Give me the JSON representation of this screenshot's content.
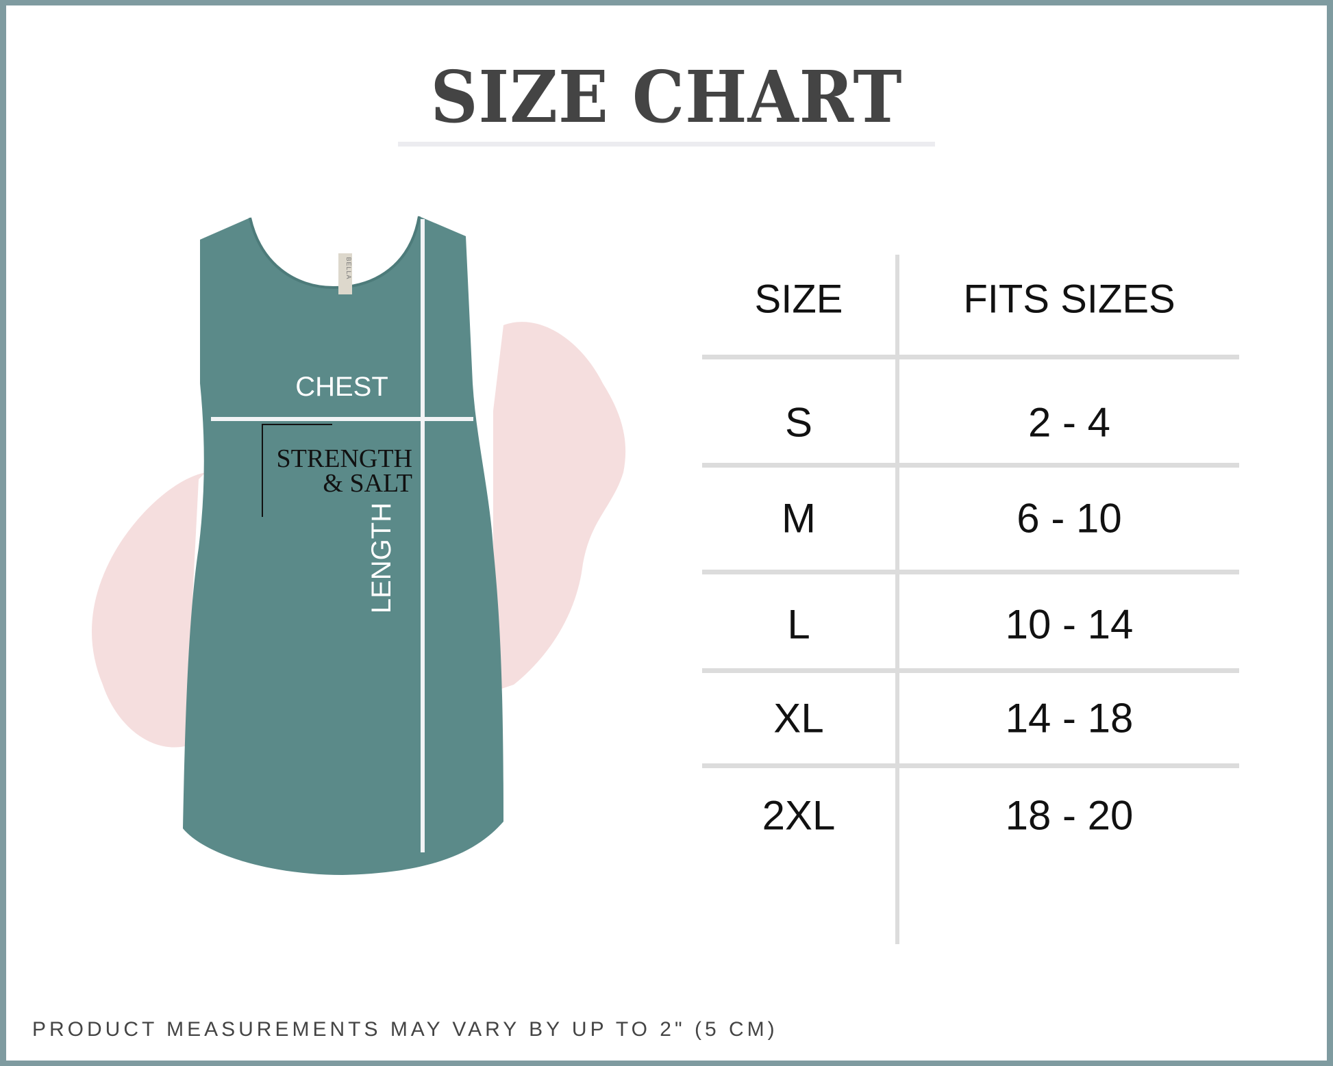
{
  "title": "SIZE CHART",
  "garment": {
    "chest_label": "CHEST",
    "length_label": "LENGTH",
    "print_line1": "STRENGTH",
    "print_line2": "& SALT",
    "tag_text": "BELLA",
    "garment_color": "#5b8a89",
    "blob_color": "#f5dede"
  },
  "table": {
    "headers": [
      "SIZE",
      "FITS SIZES"
    ],
    "rows": [
      {
        "size": "S",
        "fits": "2 - 4"
      },
      {
        "size": "M",
        "fits": "6 - 10"
      },
      {
        "size": "L",
        "fits": "10 - 14"
      },
      {
        "size": "XL",
        "fits": "14 - 18"
      },
      {
        "size": "2XL",
        "fits": "18 - 20"
      }
    ]
  },
  "footer": "PRODUCT MEASUREMENTS MAY VARY BY UP TO 2\" (5 CM)",
  "colors": {
    "frame": "#7f9ba0",
    "title": "#444444",
    "rules": "#dcdcdc"
  }
}
